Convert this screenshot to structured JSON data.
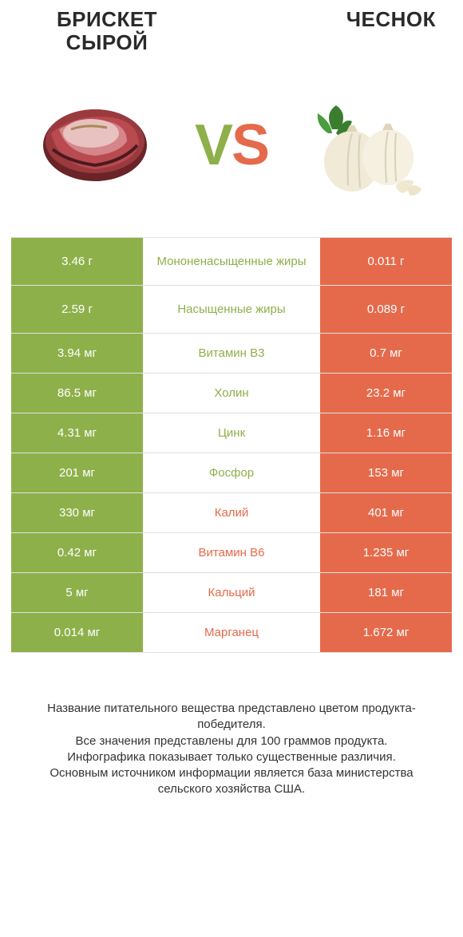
{
  "colors": {
    "green": "#8eb04a",
    "orange": "#e56a4b",
    "border": "#e0e0e0",
    "bg": "#ffffff",
    "text": "#333333"
  },
  "header": {
    "left_line1": "БРИСКЕТ",
    "left_line2": "СЫРОЙ",
    "right": "ЧЕСНОК",
    "vs_v": "V",
    "vs_s": "S"
  },
  "fontsize": {
    "title": 26,
    "vs": 72,
    "cell": 15,
    "footer": 15
  },
  "table": {
    "columns": [
      "left_value",
      "nutrient",
      "right_value"
    ],
    "rows": [
      {
        "left": "3.46 г",
        "mid": "Мононенасыщенные жиры",
        "right": "0.011 г",
        "winner": "left",
        "tall": true
      },
      {
        "left": "2.59 г",
        "mid": "Насыщенные жиры",
        "right": "0.089 г",
        "winner": "left",
        "tall": true
      },
      {
        "left": "3.94 мг",
        "mid": "Витамин B3",
        "right": "0.7 мг",
        "winner": "left",
        "tall": false
      },
      {
        "left": "86.5 мг",
        "mid": "Холин",
        "right": "23.2 мг",
        "winner": "left",
        "tall": false
      },
      {
        "left": "4.31 мг",
        "mid": "Цинк",
        "right": "1.16 мг",
        "winner": "left",
        "tall": false
      },
      {
        "left": "201 мг",
        "mid": "Фосфор",
        "right": "153 мг",
        "winner": "left",
        "tall": false
      },
      {
        "left": "330 мг",
        "mid": "Калий",
        "right": "401 мг",
        "winner": "right",
        "tall": false
      },
      {
        "left": "0.42 мг",
        "mid": "Витамин B6",
        "right": "1.235 мг",
        "winner": "right",
        "tall": false
      },
      {
        "left": "5 мг",
        "mid": "Кальций",
        "right": "181 мг",
        "winner": "right",
        "tall": false
      },
      {
        "left": "0.014 мг",
        "mid": "Марганец",
        "right": "1.672 мг",
        "winner": "right",
        "tall": false
      }
    ]
  },
  "footer": {
    "line1": "Название питательного вещества представлено цветом продукта-победителя.",
    "line2": "Все значения представлены для 100 граммов продукта.",
    "line3": "Инфографика показывает только существенные различия.",
    "line4": "Основным источником информации является база министерства сельского хозяйства США."
  }
}
